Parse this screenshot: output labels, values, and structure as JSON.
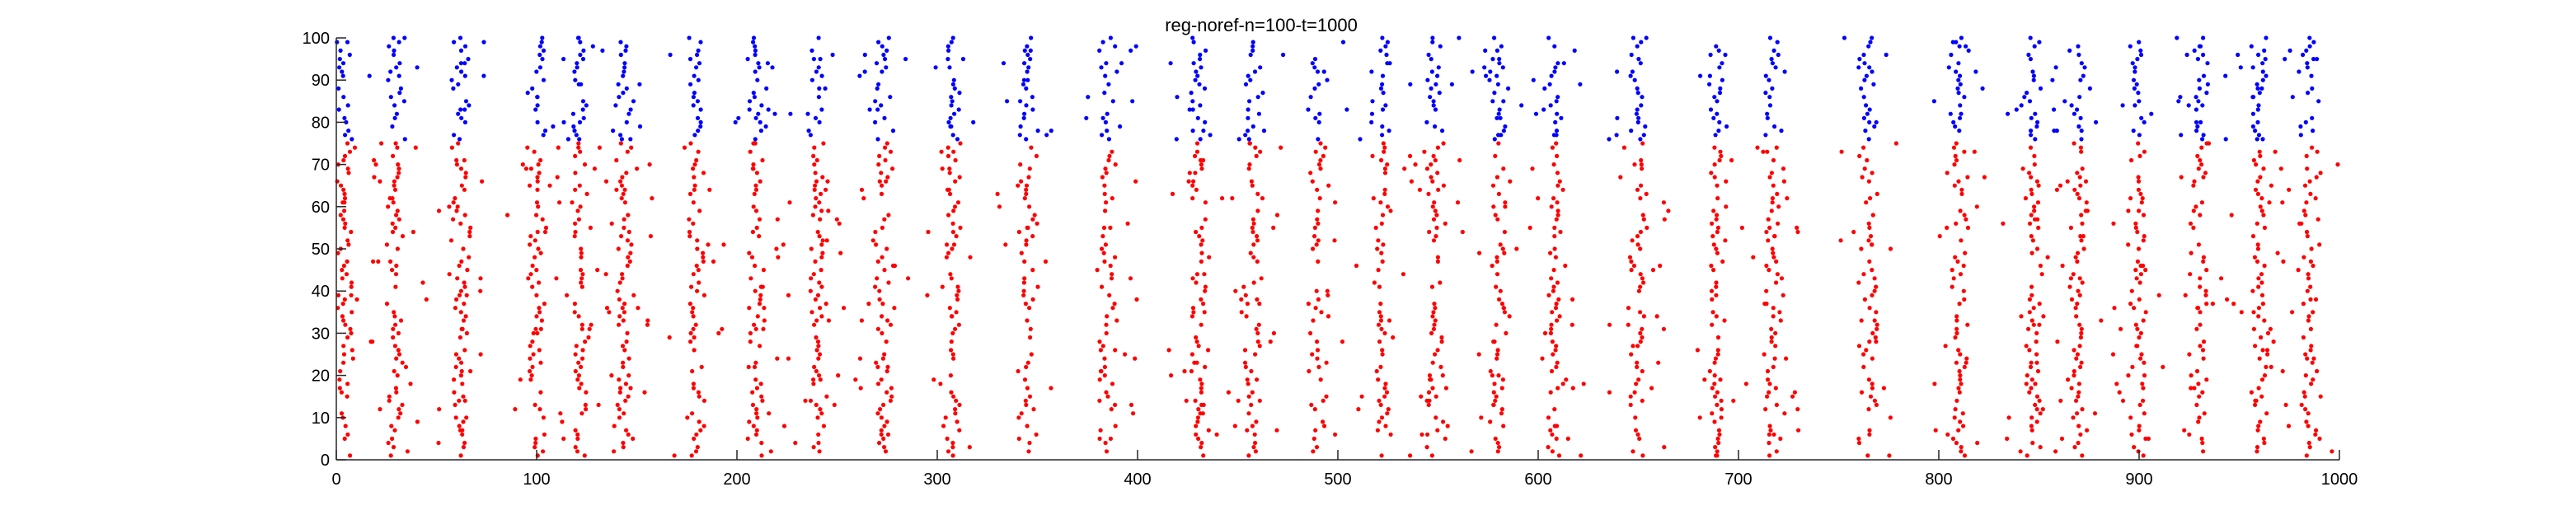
{
  "chart_data": {
    "type": "scatter",
    "title": "reg-noref-n=100-t=1000",
    "xlabel": "",
    "ylabel": "",
    "xlim": [
      0,
      1000
    ],
    "ylim": [
      0,
      100
    ],
    "xticks": [
      0,
      100,
      200,
      300,
      400,
      500,
      600,
      700,
      800,
      900,
      1000
    ],
    "yticks": [
      0,
      10,
      20,
      30,
      40,
      50,
      60,
      70,
      80,
      90,
      100
    ],
    "grid": false,
    "legend": "none",
    "series": [
      {
        "neurons": [
          1,
          75
        ],
        "color": "#ff0000",
        "marker": "dot"
      },
      {
        "neurons": [
          76,
          100
        ],
        "color": "#0000ff",
        "marker": "dot"
      }
    ],
    "burst_centers": [
      4,
      30,
      62,
      100,
      122,
      143,
      180,
      210,
      240,
      273,
      308,
      345,
      385,
      430,
      458,
      490,
      522,
      548,
      580,
      608,
      650,
      690,
      717,
      765,
      810,
      847,
      870,
      900,
      930,
      960,
      985
    ]
  }
}
